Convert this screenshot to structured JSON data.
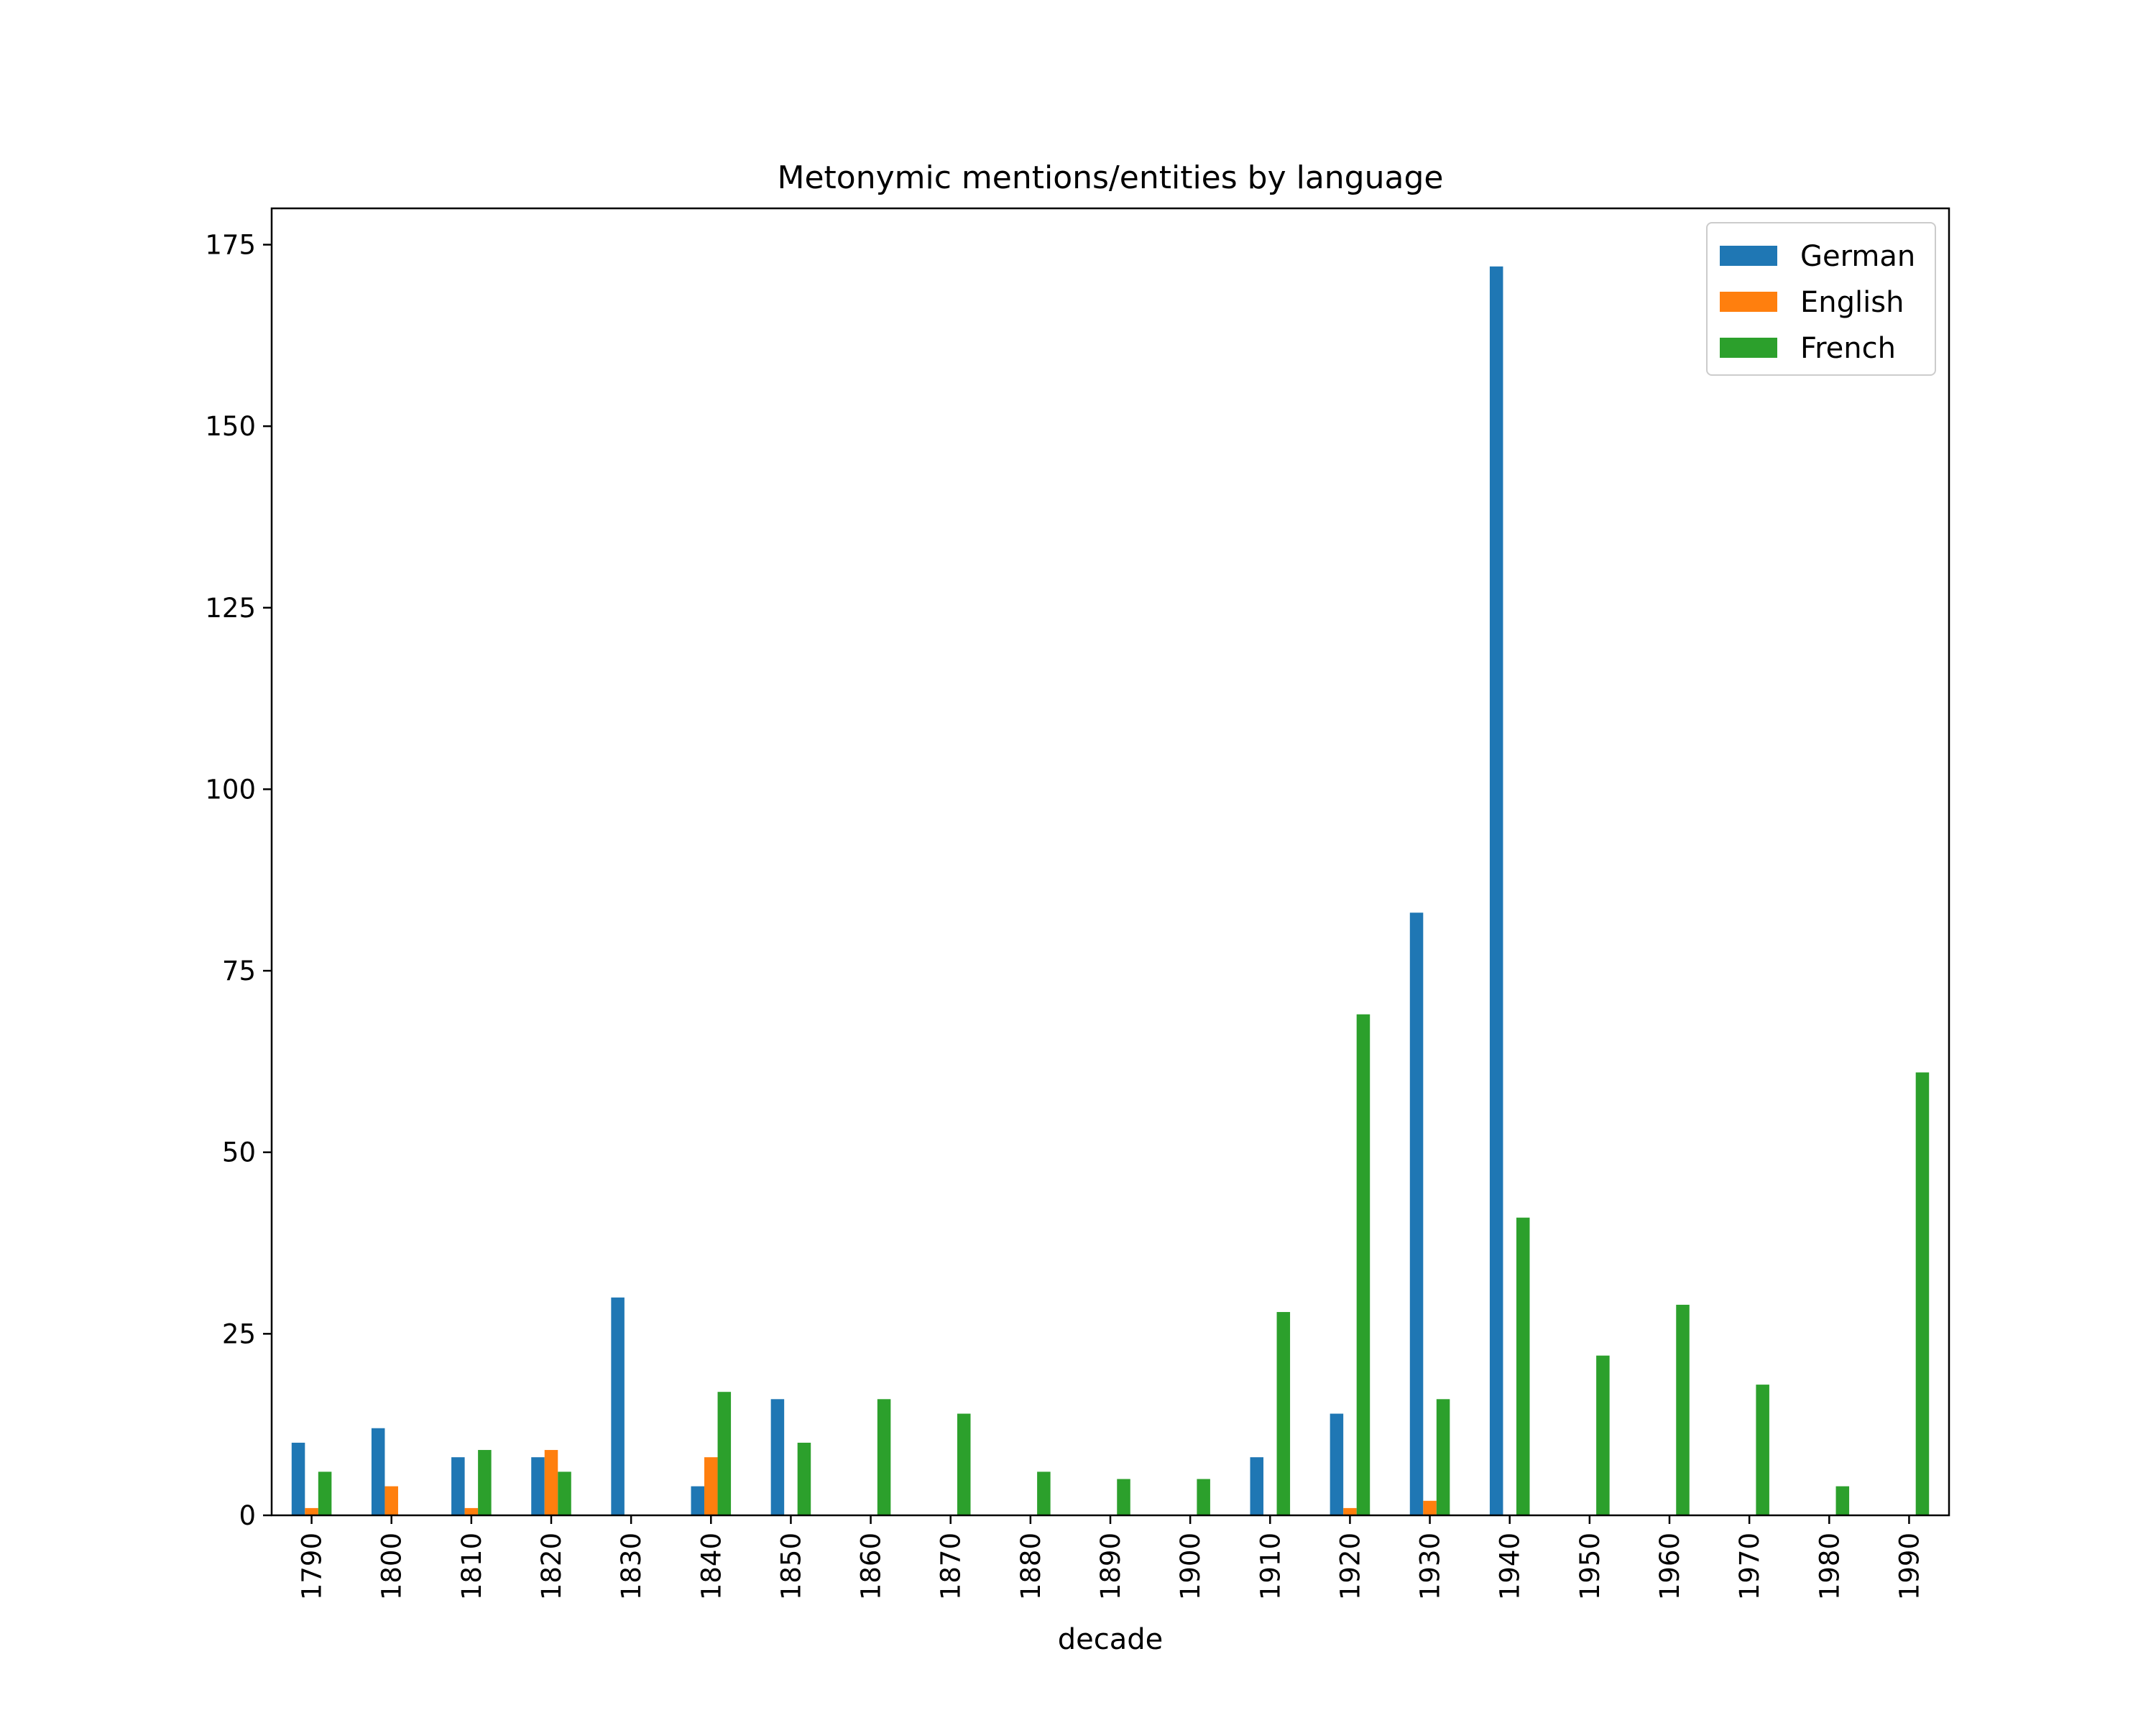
{
  "chart_data": {
    "type": "bar",
    "title": "Metonymic mentions/entities by language",
    "xlabel": "decade",
    "ylabel": "",
    "ylim": [
      0,
      180
    ],
    "yticks": [
      0,
      25,
      50,
      75,
      100,
      125,
      150,
      175
    ],
    "grid": false,
    "legend_position": "top-right",
    "categories": [
      "1790",
      "1800",
      "1810",
      "1820",
      "1830",
      "1840",
      "1850",
      "1860",
      "1870",
      "1880",
      "1890",
      "1900",
      "1910",
      "1920",
      "1930",
      "1940",
      "1950",
      "1960",
      "1970",
      "1980",
      "1990"
    ],
    "series": [
      {
        "name": "German",
        "color": "#1f77b4",
        "values": [
          10,
          12,
          8,
          8,
          30,
          4,
          16,
          0,
          0,
          0,
          0,
          0,
          8,
          14,
          83,
          172,
          0,
          0,
          0,
          0,
          0
        ]
      },
      {
        "name": "English",
        "color": "#ff7f0e",
        "values": [
          1,
          4,
          1,
          9,
          0,
          8,
          0,
          0,
          0,
          0,
          0,
          0,
          0,
          1,
          2,
          0,
          0,
          0,
          0,
          0,
          0
        ]
      },
      {
        "name": "French",
        "color": "#2ca02c",
        "values": [
          6,
          0,
          9,
          6,
          0,
          17,
          10,
          16,
          14,
          6,
          5,
          5,
          28,
          69,
          16,
          41,
          22,
          29,
          18,
          4,
          61
        ]
      }
    ]
  }
}
